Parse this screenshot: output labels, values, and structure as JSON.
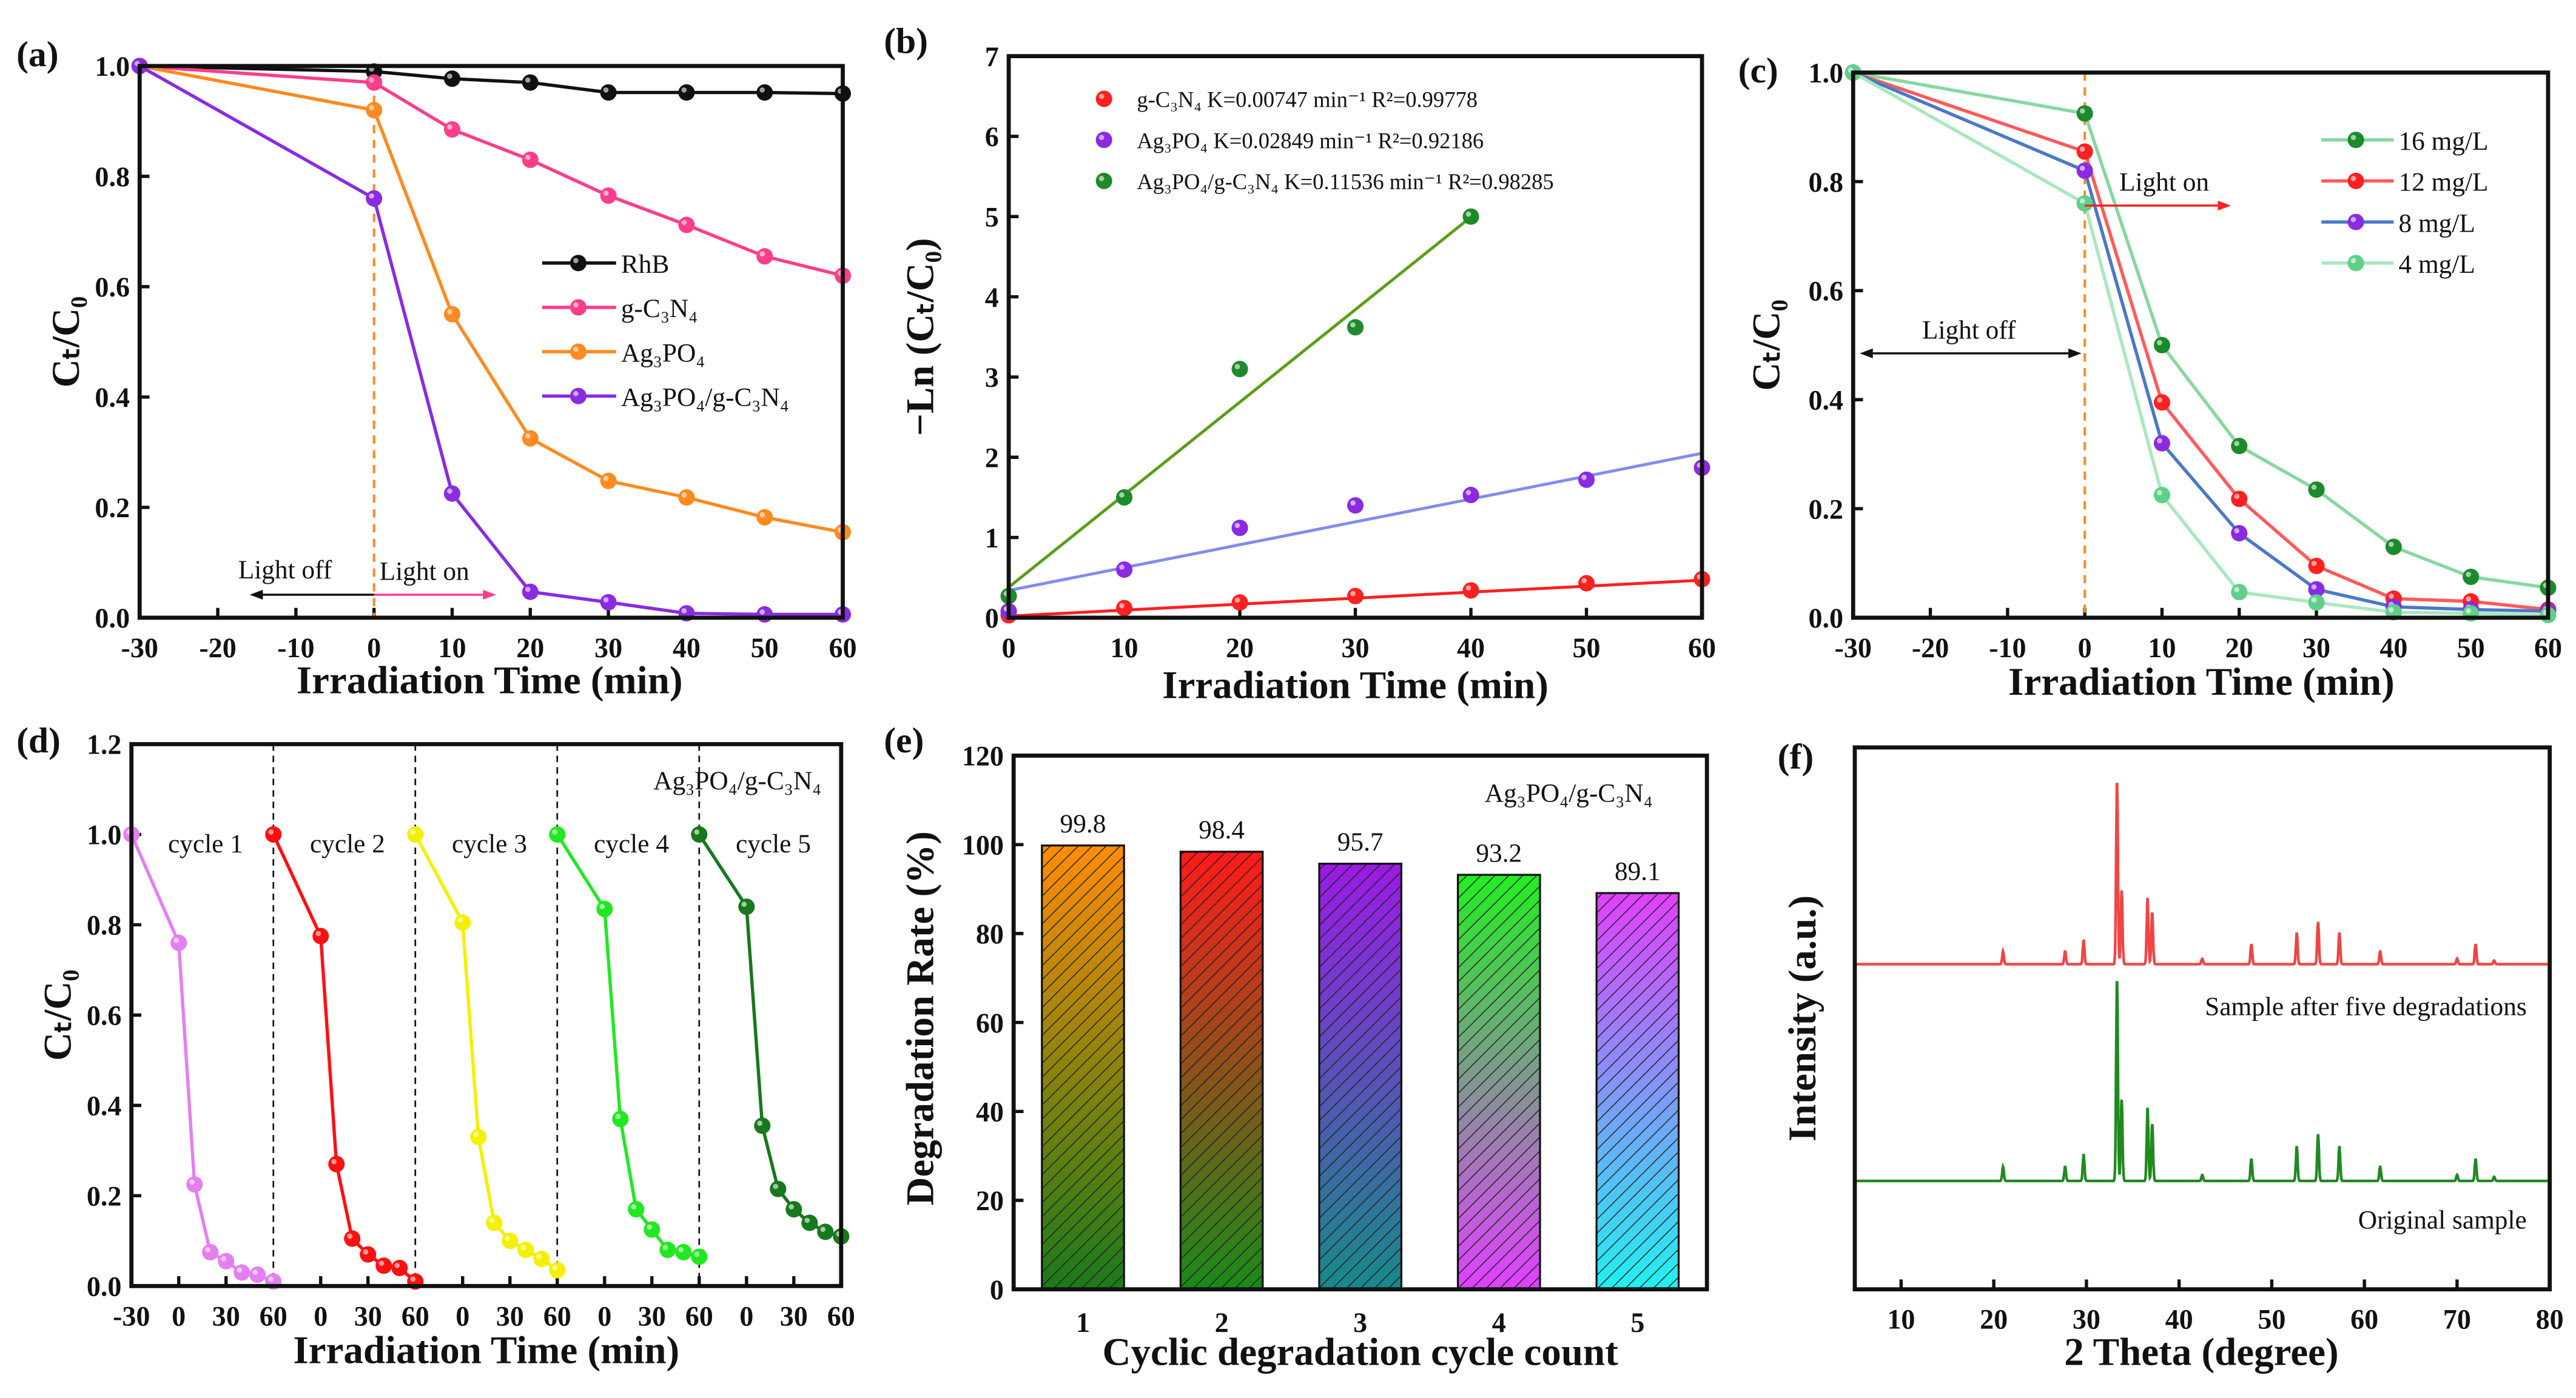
{
  "chart_data": [
    {
      "panel_label": "(a)",
      "type": "line",
      "xlabel": "Irradiation Time (min)",
      "ylabel": "Cₜ/C₀",
      "xlim": [
        -30,
        60
      ],
      "ylim": [
        0,
        1
      ],
      "xticks": [
        "-30",
        "-20",
        "-10",
        "0",
        "10",
        "20",
        "30",
        "40",
        "50",
        "60"
      ],
      "yticks": [
        "0.0",
        "0.2",
        "0.4",
        "0.6",
        "0.8",
        "1.0"
      ],
      "x": [
        -30,
        0,
        10,
        20,
        30,
        40,
        50,
        60
      ],
      "legend_position": "center-right",
      "series": [
        {
          "name": "RhB",
          "color": "#111111",
          "values": [
            1.0,
            0.99,
            0.977,
            0.97,
            0.952,
            0.952,
            0.952,
            0.95
          ]
        },
        {
          "name": "g-C₃N₄",
          "color": "#ff3d8b",
          "values": [
            1.0,
            0.97,
            0.885,
            0.83,
            0.765,
            0.712,
            0.655,
            0.62
          ]
        },
        {
          "name": "Ag₃PO₄",
          "color": "#ff8a1f",
          "values": [
            1.0,
            0.92,
            0.55,
            0.325,
            0.248,
            0.218,
            0.182,
            0.155
          ]
        },
        {
          "name": "Ag₃PO₄/g-C₃N₄",
          "color": "#8a2be2",
          "values": [
            1.0,
            0.76,
            0.225,
            0.047,
            0.028,
            0.008,
            0.006,
            0.006
          ]
        }
      ],
      "annotations": {
        "light_off": "Light off",
        "light_on": "Light on",
        "light_on_color": "#ff2a4a",
        "divider_color": "#ff8a1f"
      }
    },
    {
      "panel_label": "(b)",
      "type": "scatter",
      "xlabel": "Irradiation Time (min)",
      "ylabel": "−Ln (Cₜ/C₀)",
      "xlim": [
        0,
        60
      ],
      "ylim": [
        0,
        7
      ],
      "xticks": [
        "0",
        "10",
        "20",
        "30",
        "40",
        "50",
        "60"
      ],
      "yticks": [
        "0",
        "1",
        "2",
        "3",
        "4",
        "5",
        "6",
        "7"
      ],
      "legend_position": "top-left",
      "series": [
        {
          "name": "g-C₃N₄",
          "legend": "g-C₃N₄  K=0.00747 min⁻¹ R²=0.99778",
          "color": "#ff2020",
          "fit_color": "#ff2020",
          "x": [
            0,
            10,
            20,
            30,
            40,
            50,
            60
          ],
          "values": [
            0.03,
            0.12,
            0.19,
            0.27,
            0.34,
            0.43,
            0.48
          ],
          "fit": [
            0.02,
            0.00747
          ]
        },
        {
          "name": "Ag₃PO₄",
          "legend": "Ag₃PO₄  K=0.02849 min⁻¹ R²=0.92186",
          "color": "#8a2be2",
          "fit_color": "#7f8cf0",
          "x": [
            0,
            10,
            20,
            30,
            40,
            50,
            60
          ],
          "values": [
            0.08,
            0.6,
            1.12,
            1.4,
            1.53,
            1.72,
            1.87
          ],
          "fit": [
            0.34,
            0.02849
          ]
        },
        {
          "name": "Ag₃PO₄/g-C₃N₄",
          "legend": "Ag₃PO₄/g-C₃N₄  K=0.11536 min⁻¹ R²=0.98285",
          "color": "#1f8a2a",
          "fit_color": "#5a9e14",
          "x": [
            0,
            10,
            20,
            30,
            40
          ],
          "values": [
            0.27,
            1.5,
            3.1,
            3.62,
            5.0
          ],
          "fit": [
            0.38,
            0.11536
          ]
        }
      ]
    },
    {
      "panel_label": "(c)",
      "type": "line",
      "xlabel": "Irradiation Time (min)",
      "ylabel": "Cₜ/C₀",
      "xlim": [
        -30,
        60
      ],
      "ylim": [
        0,
        1
      ],
      "xticks": [
        "-30",
        "-20",
        "-10",
        "0",
        "10",
        "20",
        "30",
        "40",
        "50",
        "60"
      ],
      "yticks": [
        "0.0",
        "0.2",
        "0.4",
        "0.6",
        "0.8",
        "1.0"
      ],
      "x": [
        -30,
        0,
        10,
        20,
        30,
        40,
        50,
        60
      ],
      "legend_position": "top-right",
      "series": [
        {
          "name": "16 mg/L",
          "color": "#1a8a2a",
          "line_color": "#86d8a0",
          "values": [
            1.0,
            0.925,
            0.5,
            0.315,
            0.235,
            0.13,
            0.075,
            0.055
          ]
        },
        {
          "name": "12 mg/L",
          "color": "#ff2020",
          "line_color": "#ff5a5a",
          "values": [
            1.0,
            0.855,
            0.395,
            0.218,
            0.095,
            0.035,
            0.03,
            0.015
          ]
        },
        {
          "name": "8 mg/L",
          "color": "#8a2be2",
          "line_color": "#4a78c8",
          "values": [
            1.0,
            0.82,
            0.32,
            0.155,
            0.052,
            0.02,
            0.015,
            0.012
          ]
        },
        {
          "name": "4 mg/L",
          "color": "#5fd08a",
          "line_color": "#a8e8c0",
          "values": [
            1.0,
            0.76,
            0.225,
            0.047,
            0.028,
            0.01,
            0.008,
            0.005
          ]
        }
      ],
      "annotations": {
        "light_off": "Light off",
        "light_on": "Light on",
        "light_on_color": "#ff2020",
        "divider_color": "#ff8a1f"
      }
    },
    {
      "panel_label": "(d)",
      "type": "line",
      "xlabel": "Irradiation Time (min)",
      "ylabel": "Cₜ/C₀",
      "xlim": [
        0,
        450
      ],
      "ylim": [
        0,
        1.2
      ],
      "xtick_positions": [
        0,
        30,
        60,
        90,
        120,
        150,
        180,
        210,
        240,
        270,
        300,
        330,
        360,
        390,
        420,
        450
      ],
      "xticks": [
        "-30",
        "0",
        "30",
        "60",
        "0",
        "30",
        "60",
        "0",
        "30",
        "60",
        "0",
        "30",
        "60",
        "0",
        "30",
        "60"
      ],
      "yticks": [
        "0.0",
        "0.2",
        "0.4",
        "0.6",
        "0.8",
        "1.0",
        "1.2"
      ],
      "cycle_length": 90,
      "x": [
        -30,
        0,
        10,
        20,
        30,
        40,
        50,
        60
      ],
      "annotation": "Ag₃PO₄/g-C₃N₄",
      "series": [
        {
          "name": "cycle 1",
          "color": "#e47ff2",
          "values": [
            1.0,
            0.76,
            0.225,
            0.075,
            0.055,
            0.03,
            0.025,
            0.01
          ]
        },
        {
          "name": "cycle 2",
          "color": "#ff1010",
          "values": [
            1.0,
            0.775,
            0.27,
            0.105,
            0.07,
            0.045,
            0.04,
            0.01
          ]
        },
        {
          "name": "cycle 3",
          "color": "#f5f000",
          "values": [
            1.0,
            0.805,
            0.33,
            0.14,
            0.1,
            0.08,
            0.06,
            0.035
          ]
        },
        {
          "name": "cycle 4",
          "color": "#22e822",
          "values": [
            1.0,
            0.835,
            0.37,
            0.17,
            0.125,
            0.08,
            0.075,
            0.065
          ]
        },
        {
          "name": "cycle 5",
          "color": "#17781c",
          "values": [
            1.0,
            0.84,
            0.355,
            0.215,
            0.17,
            0.14,
            0.12,
            0.11
          ]
        }
      ]
    },
    {
      "panel_label": "(e)",
      "type": "bar",
      "xlabel": "Cyclic degradation cycle count",
      "ylabel": "Degradation Rate (%)",
      "ylim": [
        0,
        120
      ],
      "categories": [
        "1",
        "2",
        "3",
        "4",
        "5"
      ],
      "values": [
        99.8,
        98.4,
        95.7,
        93.2,
        89.1
      ],
      "value_labels": [
        "99.8",
        "98.4",
        "95.7",
        "93.2",
        "89.1"
      ],
      "yticks": [
        "0",
        "20",
        "40",
        "60",
        "80",
        "100",
        "120"
      ],
      "annotation": "Ag₃PO₄/g-C₃N₄",
      "colors_top": [
        "#ff8c00",
        "#ff1a1a",
        "#9b1ae6",
        "#22ee22",
        "#e040ff"
      ],
      "colors_bottom": [
        "#1a7a1a",
        "#1a8a1a",
        "#178a8a",
        "#e040ff",
        "#20f0f0"
      ]
    },
    {
      "panel_label": "(f)",
      "type": "line",
      "xlabel": "2 Theta (degree)",
      "ylabel": "Intensity (a.u.)",
      "xlim": [
        5,
        80
      ],
      "ylim": [
        0,
        100
      ],
      "xticks": [
        "10",
        "20",
        "30",
        "40",
        "50",
        "60",
        "70",
        "80"
      ],
      "peaks": [
        [
          21.0,
          0.07
        ],
        [
          27.7,
          0.07
        ],
        [
          29.7,
          0.13
        ],
        [
          33.3,
          1.0
        ],
        [
          33.8,
          0.4
        ],
        [
          36.6,
          0.36
        ],
        [
          37.1,
          0.28
        ],
        [
          42.5,
          0.03
        ],
        [
          47.8,
          0.11
        ],
        [
          52.7,
          0.17
        ],
        [
          55.0,
          0.23
        ],
        [
          57.3,
          0.17
        ],
        [
          61.7,
          0.07
        ],
        [
          70.0,
          0.03
        ],
        [
          72.0,
          0.11
        ],
        [
          74.0,
          0.02
        ]
      ],
      "series": [
        {
          "name": "Sample after five degradations",
          "color": "#f04545",
          "offset": 60,
          "scale": 34
        },
        {
          "name": "Original sample",
          "color": "#1f8a1f",
          "offset": 20,
          "scale": 37.5
        }
      ]
    }
  ]
}
